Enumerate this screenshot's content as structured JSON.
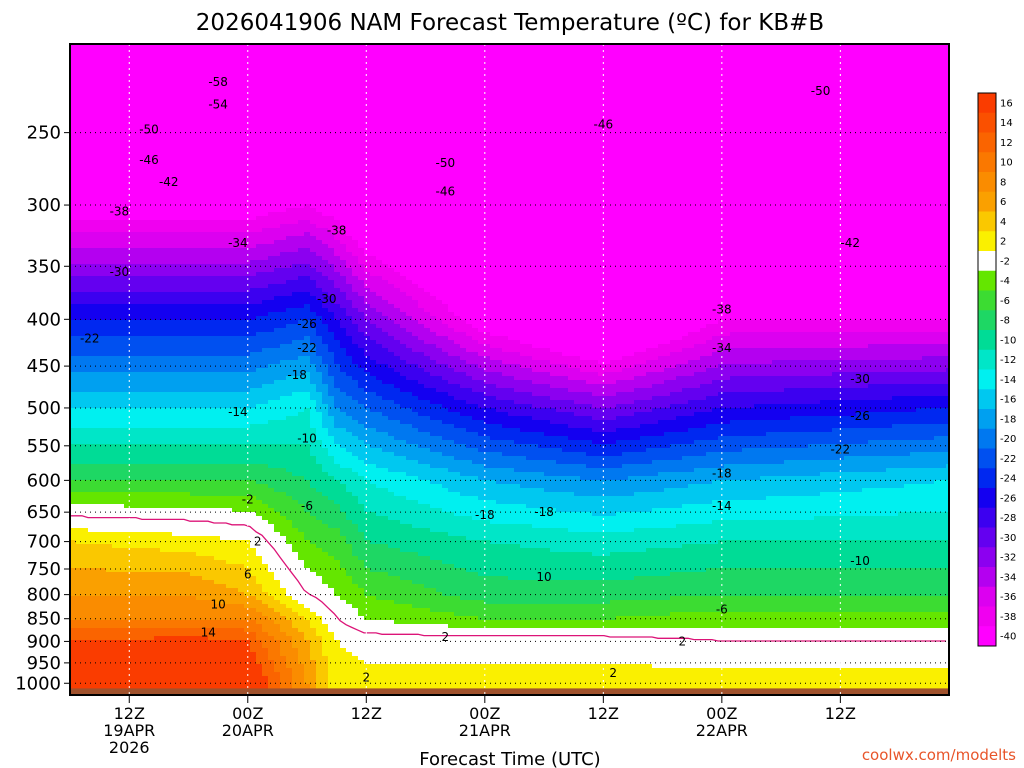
{
  "chart_data": {
    "type": "heatmap",
    "title": "2026041906 NAM Forecast Temperature (ºC) for KB#B",
    "xlabel": "Forecast Time (UTC)",
    "ylabel": "",
    "watermark": "coolwx.com/modelts",
    "y_axis": {
      "scale": "log",
      "inverted": true,
      "ylim": [
        1030,
        200
      ],
      "ticks": [
        250,
        300,
        350,
        400,
        450,
        500,
        550,
        600,
        650,
        700,
        750,
        800,
        850,
        900,
        950,
        1000
      ]
    },
    "x_axis": {
      "xlim": [
        "2026-04-19T06Z",
        "2026-04-22T23Z"
      ],
      "ticks": [
        {
          "time": "2026-04-19T12Z",
          "line1": "12Z",
          "line2": "19APR",
          "line3": "2026"
        },
        {
          "time": "2026-04-20T00Z",
          "line1": "00Z",
          "line2": "20APR",
          "line3": ""
        },
        {
          "time": "2026-04-20T12Z",
          "line1": "12Z",
          "line2": "",
          "line3": ""
        },
        {
          "time": "2026-04-21T00Z",
          "line1": "00Z",
          "line2": "21APR",
          "line3": ""
        },
        {
          "time": "2026-04-21T12Z",
          "line1": "12Z",
          "line2": "",
          "line3": ""
        },
        {
          "time": "2026-04-22T00Z",
          "line1": "00Z",
          "line2": "22APR",
          "line3": ""
        },
        {
          "time": "2026-04-22T12Z",
          "line1": "12Z",
          "line2": "",
          "line3": ""
        }
      ]
    },
    "grid": true,
    "colorbar": {
      "placement": "right",
      "labels": [
        "16",
        "14",
        "12",
        "10",
        "8",
        "6",
        "4",
        "2",
        "-2",
        "-4",
        "-6",
        "-8",
        "-10",
        "-12",
        "-14",
        "-16",
        "-18",
        "-20",
        "-22",
        "-24",
        "-26",
        "-28",
        "-30",
        "-32",
        "-34",
        "-36",
        "-38",
        "-40"
      ],
      "colors": [
        "#fa3c00",
        "#fa5000",
        "#fa6400",
        "#fa7800",
        "#fa8c00",
        "#faa000",
        "#fac800",
        "#faf000",
        "#ffffff",
        "#64e600",
        "#3cdc32",
        "#1ed764",
        "#00dc96",
        "#00e6c8",
        "#00f0f0",
        "#00c8f0",
        "#00a0f0",
        "#0078f0",
        "#0050f0",
        "#0028f0",
        "#1400f0",
        "#3c00f0",
        "#6400f0",
        "#8c00f0",
        "#b400f0",
        "#dc00f0",
        "#f000f0",
        "#ff00ff"
      ]
    },
    "freezing_line_color": "#dc1478",
    "surface_color": "#a0522d",
    "temperature_profiles": {
      "times": [
        "2026-04-19T06Z",
        "2026-04-19T18Z",
        "2026-04-20T00Z",
        "2026-04-20T06Z",
        "2026-04-20T09Z",
        "2026-04-20T12Z",
        "2026-04-21T00Z",
        "2026-04-21T12Z",
        "2026-04-22T00Z",
        "2026-04-22T23Z"
      ],
      "pressure_levels": [
        1000,
        900,
        850,
        800,
        700,
        600,
        500,
        400,
        300,
        250
      ],
      "temperatures": [
        [
          18,
          14,
          10,
          8,
          4,
          -6,
          -14,
          -24,
          -40,
          -50
        ],
        [
          17,
          15,
          10,
          8,
          3,
          -6,
          -14,
          -24,
          -40,
          -50
        ],
        [
          17,
          14,
          10,
          6,
          2,
          -6,
          -14,
          -24,
          -40,
          -50
        ],
        [
          8,
          6,
          4,
          0,
          -4,
          -8,
          -12,
          -22,
          -38,
          -48
        ],
        [
          3,
          2,
          0,
          -2,
          -5,
          -10,
          -18,
          -26,
          -40,
          -50
        ],
        [
          3,
          1,
          -2,
          -4,
          -8,
          -12,
          -20,
          -30,
          -44,
          -52
        ],
        [
          3,
          1,
          -4,
          -7,
          -10,
          -16,
          -26,
          -40,
          -50,
          -54
        ],
        [
          3,
          1,
          -4,
          -7,
          -11,
          -18,
          -30,
          -46,
          -52,
          -52
        ],
        [
          3,
          0,
          -3,
          -6,
          -10,
          -16,
          -26,
          -38,
          -48,
          -50
        ],
        [
          3,
          0,
          -3,
          -6,
          -10,
          -14,
          -24,
          -38,
          -46,
          -48
        ]
      ]
    },
    "contour_labels": [
      {
        "text": "-58",
        "time": "2026-04-19T21Z",
        "p": 220
      },
      {
        "text": "-54",
        "time": "2026-04-19T21Z",
        "p": 233
      },
      {
        "text": "-50",
        "time": "2026-04-19T14Z",
        "p": 248
      },
      {
        "text": "-46",
        "time": "2026-04-19T14Z",
        "p": 268
      },
      {
        "text": "-42",
        "time": "2026-04-19T16Z",
        "p": 283
      },
      {
        "text": "-38",
        "time": "2026-04-19T11Z",
        "p": 305
      },
      {
        "text": "-34",
        "time": "2026-04-19T23Z",
        "p": 330
      },
      {
        "text": "-30",
        "time": "2026-04-19T11Z",
        "p": 355
      },
      {
        "text": "-22",
        "time": "2026-04-19T08Z",
        "p": 420
      },
      {
        "text": "-50",
        "time": "2026-04-20T20Z",
        "p": 270
      },
      {
        "text": "-46",
        "time": "2026-04-20T20Z",
        "p": 290
      },
      {
        "text": "-38",
        "time": "2026-04-20T09Z",
        "p": 320
      },
      {
        "text": "-30",
        "time": "2026-04-20T08Z",
        "p": 380
      },
      {
        "text": "-26",
        "time": "2026-04-20T06Z",
        "p": 405
      },
      {
        "text": "-22",
        "time": "2026-04-20T06Z",
        "p": 430
      },
      {
        "text": "-18",
        "time": "2026-04-20T05Z",
        "p": 460
      },
      {
        "text": "-14",
        "time": "2026-04-19T23Z",
        "p": 505
      },
      {
        "text": "-10",
        "time": "2026-04-20T06Z",
        "p": 540
      },
      {
        "text": "-6",
        "time": "2026-04-20T06Z",
        "p": 640
      },
      {
        "text": "-2",
        "time": "2026-04-20T00Z",
        "p": 630
      },
      {
        "text": "2",
        "time": "2026-04-20T01Z",
        "p": 700
      },
      {
        "text": "6",
        "time": "2026-04-20T00Z",
        "p": 760
      },
      {
        "text": "10",
        "time": "2026-04-19T21Z",
        "p": 820
      },
      {
        "text": "14",
        "time": "2026-04-19T20Z",
        "p": 880
      },
      {
        "text": "-46",
        "time": "2026-04-21T12Z",
        "p": 245
      },
      {
        "text": "-50",
        "time": "2026-04-22T10Z",
        "p": 225
      },
      {
        "text": "-42",
        "time": "2026-04-22T13Z",
        "p": 330
      },
      {
        "text": "-38",
        "time": "2026-04-22T00Z",
        "p": 390
      },
      {
        "text": "-34",
        "time": "2026-04-22T00Z",
        "p": 430
      },
      {
        "text": "-30",
        "time": "2026-04-22T14Z",
        "p": 465
      },
      {
        "text": "-26",
        "time": "2026-04-22T14Z",
        "p": 510
      },
      {
        "text": "-22",
        "time": "2026-04-22T12Z",
        "p": 555
      },
      {
        "text": "-18",
        "time": "2026-04-22T00Z",
        "p": 590
      },
      {
        "text": "-18",
        "time": "2026-04-21T00Z",
        "p": 655
      },
      {
        "text": "-18",
        "time": "2026-04-21T06Z",
        "p": 650
      },
      {
        "text": "-14",
        "time": "2026-04-22T00Z",
        "p": 640
      },
      {
        "text": "-10",
        "time": "2026-04-22T14Z",
        "p": 735
      },
      {
        "text": "10",
        "time": "2026-04-21T06Z",
        "p": 765
      },
      {
        "text": "-6",
        "time": "2026-04-22T00Z",
        "p": 830
      },
      {
        "text": "2",
        "time": "2026-04-20T20Z",
        "p": 890
      },
      {
        "text": "2",
        "time": "2026-04-21T20Z",
        "p": 900
      },
      {
        "text": "2",
        "time": "2026-04-20T12Z",
        "p": 985
      },
      {
        "text": "2",
        "time": "2026-04-21T13Z",
        "p": 975
      }
    ]
  }
}
